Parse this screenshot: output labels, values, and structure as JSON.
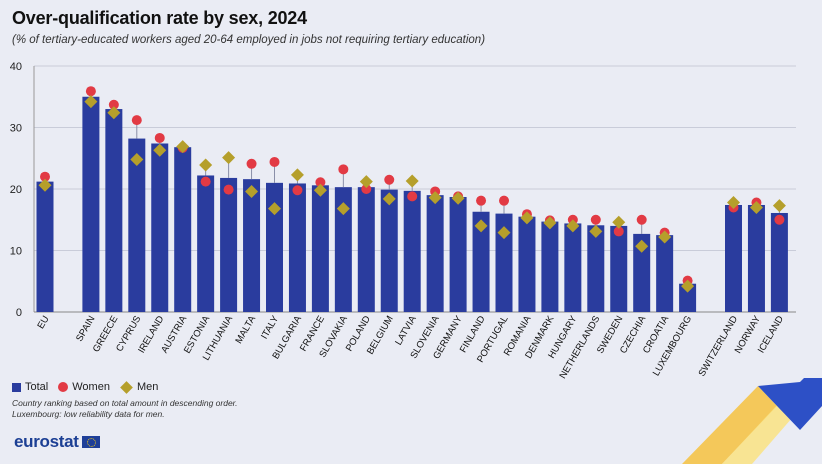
{
  "header": {
    "title": "Over-qualification rate by sex, 2024",
    "subtitle": "(% of tertiary-educated workers aged 20-64 employed in jobs not requiring tertiary education)"
  },
  "legend": {
    "total": "Total",
    "women": "Women",
    "men": "Men"
  },
  "notes": {
    "line1": "Country ranking based on total amount in descending order.",
    "line2": "Luxembourg: low reliability data for men."
  },
  "footer": {
    "logo_text": "eurostat"
  },
  "colors": {
    "total": "#2a3c9e",
    "women": "#e23a44",
    "men": "#b59f2b",
    "grid": "#c9ccd9"
  },
  "chart_data": {
    "type": "bar",
    "title": "Over-qualification rate by sex, 2024",
    "ylim": [
      0,
      40
    ],
    "yticks": [
      0,
      10,
      20,
      30,
      40
    ],
    "categories": [
      "EU",
      "Spain",
      "Greece",
      "Cyprus",
      "Ireland",
      "Austria",
      "Estonia",
      "Lithuania",
      "Malta",
      "Italy",
      "Bulgaria",
      "France",
      "Slovakia",
      "Poland",
      "Belgium",
      "Latvia",
      "Slovenia",
      "Germany",
      "Finland",
      "Portugal",
      "Romania",
      "Denmark",
      "Hungary",
      "Netherlands",
      "Sweden",
      "Czechia",
      "Croatia",
      "Luxembourg",
      "Switzerland",
      "Norway",
      "Iceland"
    ],
    "series": [
      {
        "name": "Total",
        "values": [
          21.2,
          35.0,
          33.0,
          28.2,
          27.4,
          26.8,
          22.2,
          21.8,
          21.6,
          21.0,
          20.9,
          20.6,
          20.3,
          20.3,
          19.9,
          19.7,
          19.0,
          18.7,
          16.3,
          16.0,
          15.5,
          14.7,
          14.4,
          14.1,
          14.0,
          12.7,
          12.5,
          4.6,
          17.4,
          17.4,
          16.1
        ]
      },
      {
        "name": "Women",
        "values": [
          22.0,
          35.9,
          33.7,
          31.2,
          28.3,
          26.7,
          21.2,
          19.9,
          24.1,
          24.4,
          19.8,
          21.1,
          23.2,
          20.0,
          21.5,
          18.8,
          19.6,
          18.8,
          18.1,
          18.1,
          15.9,
          14.9,
          15.0,
          15.0,
          13.1,
          15.0,
          12.9,
          5.1,
          17.0,
          17.8,
          15.0
        ]
      },
      {
        "name": "Men",
        "values": [
          20.6,
          34.2,
          32.4,
          24.8,
          26.3,
          26.9,
          23.9,
          25.1,
          19.6,
          16.8,
          22.3,
          19.8,
          16.8,
          21.2,
          18.4,
          21.3,
          18.6,
          18.5,
          14.0,
          12.9,
          15.3,
          14.5,
          14.0,
          13.1,
          14.6,
          10.7,
          12.2,
          4.2,
          17.8,
          17.0,
          17.3
        ]
      }
    ]
  }
}
